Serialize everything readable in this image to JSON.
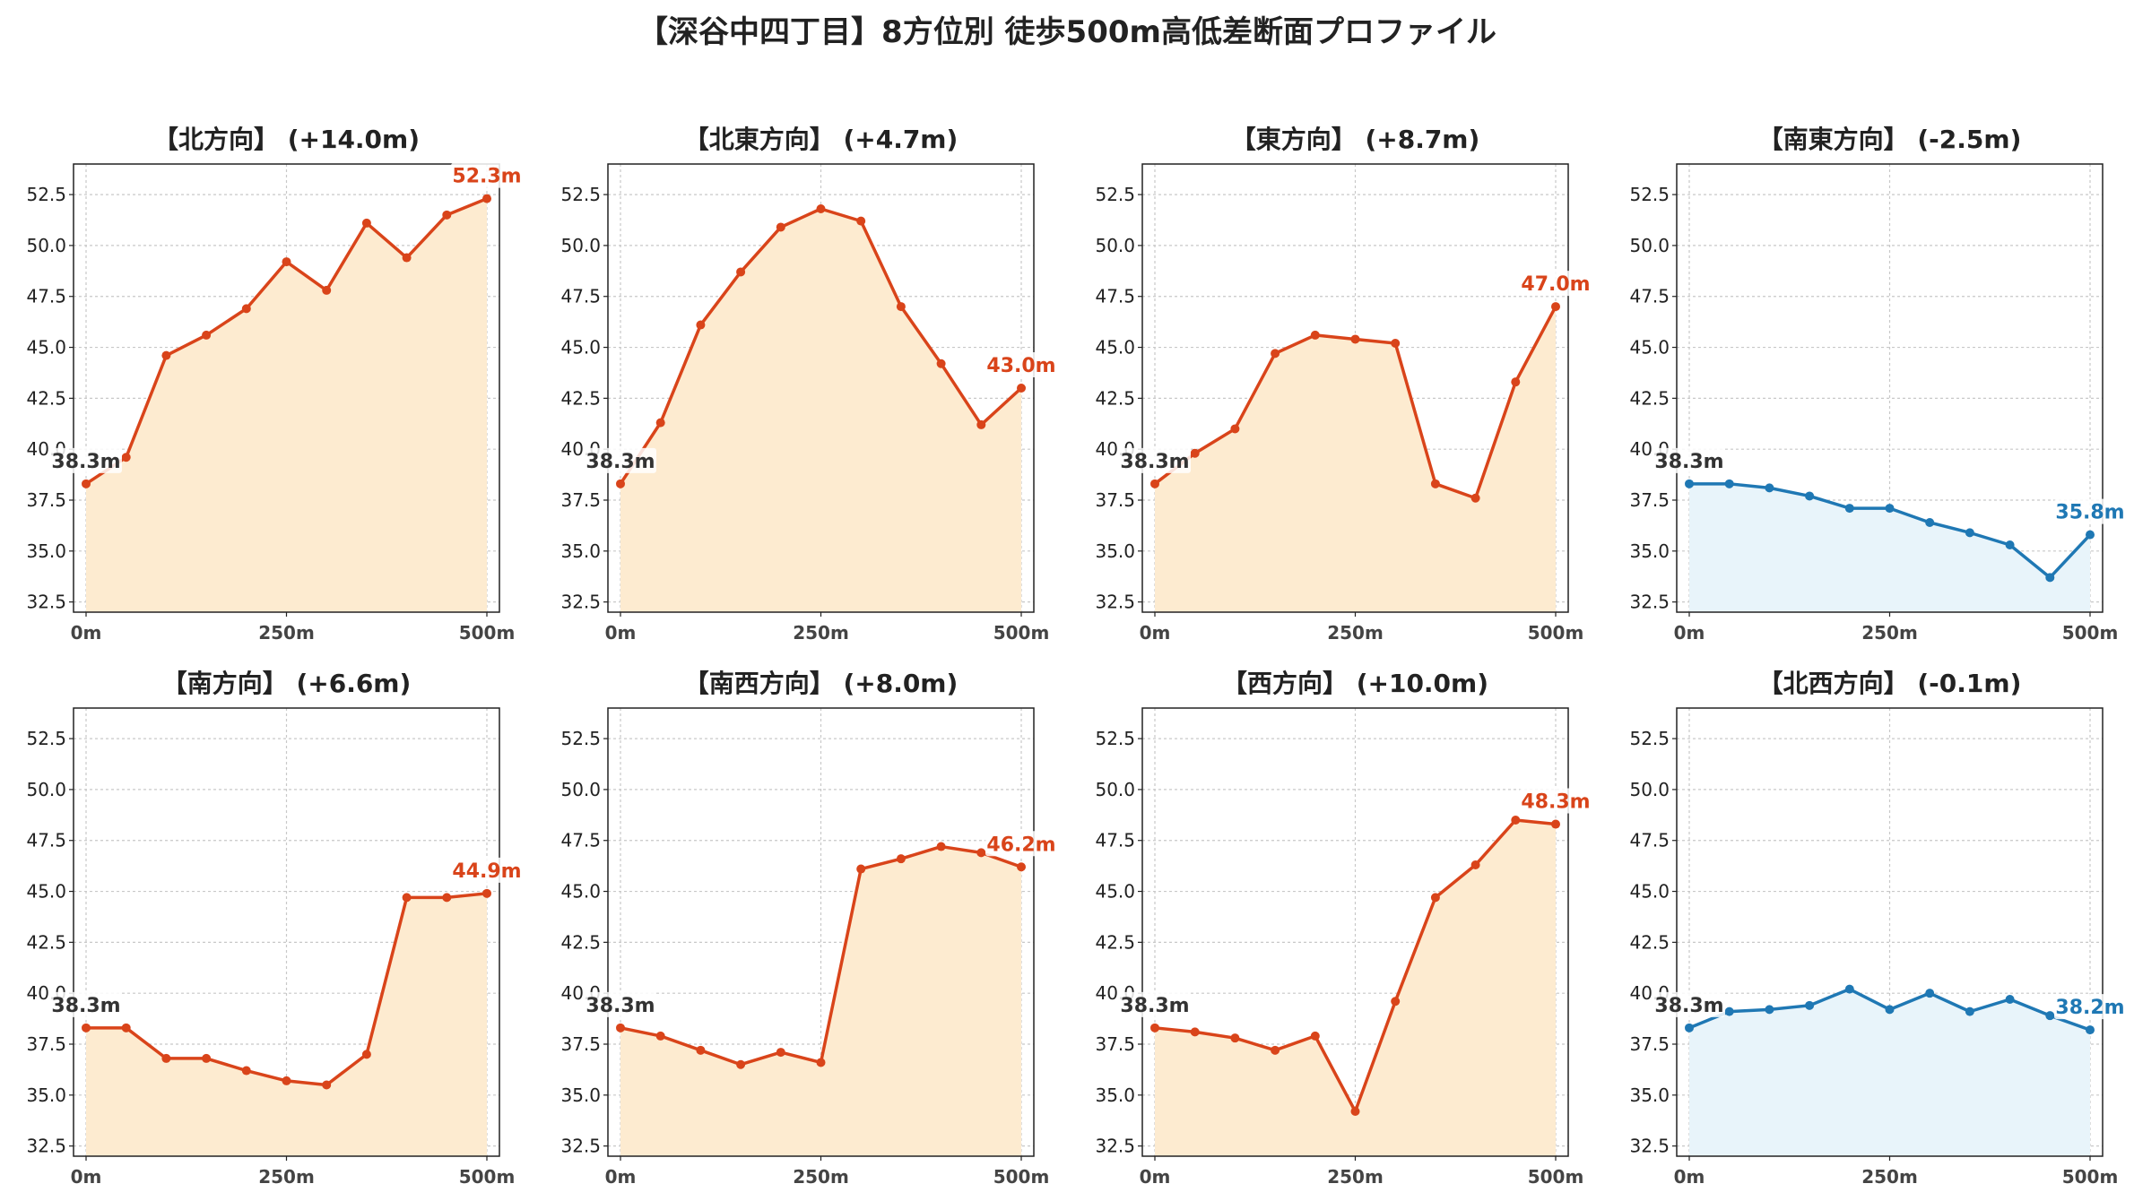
{
  "title": "【深谷中四丁目】8方位別 徒歩500m高低差断面プロファイル",
  "colors": {
    "up": "#d9441a",
    "up_fill": "#fdebd0",
    "down": "#1f78b4",
    "down_fill": "#e8f4fa",
    "start_label": "#333333"
  },
  "chart_data": [
    {
      "type": "area",
      "title": "【北方向】 (+14.0m)",
      "x": [
        0,
        50,
        100,
        150,
        200,
        250,
        300,
        350,
        400,
        450,
        500
      ],
      "values": [
        38.3,
        39.6,
        44.6,
        45.6,
        46.9,
        49.2,
        47.8,
        51.1,
        49.4,
        51.5,
        52.3
      ],
      "start_label": "38.3m",
      "end_label": "52.3m",
      "trend": "up",
      "xticks": [
        "0m",
        "250m",
        "500m"
      ],
      "ylim": [
        32,
        54
      ],
      "yticks": [
        "32.5",
        "35.0",
        "37.5",
        "40.0",
        "42.5",
        "45.0",
        "47.5",
        "50.0",
        "52.5"
      ],
      "grid": true
    },
    {
      "type": "area",
      "title": "【北東方向】 (+4.7m)",
      "x": [
        0,
        50,
        100,
        150,
        200,
        250,
        300,
        350,
        400,
        450,
        500
      ],
      "values": [
        38.3,
        41.3,
        46.1,
        48.7,
        50.9,
        51.8,
        51.2,
        47.0,
        44.2,
        41.2,
        43.0
      ],
      "start_label": "38.3m",
      "end_label": "43.0m",
      "trend": "up",
      "xticks": [
        "0m",
        "250m",
        "500m"
      ],
      "ylim": [
        32,
        54
      ],
      "yticks": [
        "32.5",
        "35.0",
        "37.5",
        "40.0",
        "42.5",
        "45.0",
        "47.5",
        "50.0",
        "52.5"
      ],
      "grid": true
    },
    {
      "type": "area",
      "title": "【東方向】 (+8.7m)",
      "x": [
        0,
        50,
        100,
        150,
        200,
        250,
        300,
        350,
        400,
        450,
        500
      ],
      "values": [
        38.3,
        39.8,
        41.0,
        44.7,
        45.6,
        45.4,
        45.2,
        38.3,
        37.6,
        43.3,
        47.0
      ],
      "start_label": "38.3m",
      "end_label": "47.0m",
      "trend": "up",
      "xticks": [
        "0m",
        "250m",
        "500m"
      ],
      "ylim": [
        32,
        54
      ],
      "yticks": [
        "32.5",
        "35.0",
        "37.5",
        "40.0",
        "42.5",
        "45.0",
        "47.5",
        "50.0",
        "52.5"
      ],
      "grid": true
    },
    {
      "type": "area",
      "title": "【南東方向】 (-2.5m)",
      "x": [
        0,
        50,
        100,
        150,
        200,
        250,
        300,
        350,
        400,
        450,
        500
      ],
      "values": [
        38.3,
        38.3,
        38.1,
        37.7,
        37.1,
        37.1,
        36.4,
        35.9,
        35.3,
        33.7,
        35.8
      ],
      "start_label": "38.3m",
      "end_label": "35.8m",
      "trend": "down",
      "xticks": [
        "0m",
        "250m",
        "500m"
      ],
      "ylim": [
        32,
        54
      ],
      "yticks": [
        "32.5",
        "35.0",
        "37.5",
        "40.0",
        "42.5",
        "45.0",
        "47.5",
        "50.0",
        "52.5"
      ],
      "grid": true
    },
    {
      "type": "area",
      "title": "【南方向】 (+6.6m)",
      "x": [
        0,
        50,
        100,
        150,
        200,
        250,
        300,
        350,
        400,
        450,
        500
      ],
      "values": [
        38.3,
        38.3,
        36.8,
        36.8,
        36.2,
        35.7,
        35.5,
        37.0,
        44.7,
        44.7,
        44.9
      ],
      "start_label": "38.3m",
      "end_label": "44.9m",
      "trend": "up",
      "xticks": [
        "0m",
        "250m",
        "500m"
      ],
      "ylim": [
        32,
        54
      ],
      "yticks": [
        "32.5",
        "35.0",
        "37.5",
        "40.0",
        "42.5",
        "45.0",
        "47.5",
        "50.0",
        "52.5"
      ],
      "grid": true
    },
    {
      "type": "area",
      "title": "【南西方向】 (+8.0m)",
      "x": [
        0,
        50,
        100,
        150,
        200,
        250,
        300,
        350,
        400,
        450,
        500
      ],
      "values": [
        38.3,
        37.9,
        37.2,
        36.5,
        37.1,
        36.6,
        46.1,
        46.6,
        47.2,
        46.9,
        46.2
      ],
      "start_label": "38.3m",
      "end_label": "46.2m",
      "trend": "up",
      "xticks": [
        "0m",
        "250m",
        "500m"
      ],
      "ylim": [
        32,
        54
      ],
      "yticks": [
        "32.5",
        "35.0",
        "37.5",
        "40.0",
        "42.5",
        "45.0",
        "47.5",
        "50.0",
        "52.5"
      ],
      "grid": true
    },
    {
      "type": "area",
      "title": "【西方向】 (+10.0m)",
      "x": [
        0,
        50,
        100,
        150,
        200,
        250,
        300,
        350,
        400,
        450,
        500
      ],
      "values": [
        38.3,
        38.1,
        37.8,
        37.2,
        37.9,
        34.2,
        39.6,
        44.7,
        46.3,
        48.5,
        48.3
      ],
      "start_label": "38.3m",
      "end_label": "48.3m",
      "trend": "up",
      "xticks": [
        "0m",
        "250m",
        "500m"
      ],
      "ylim": [
        32,
        54
      ],
      "yticks": [
        "32.5",
        "35.0",
        "37.5",
        "40.0",
        "42.5",
        "45.0",
        "47.5",
        "50.0",
        "52.5"
      ],
      "grid": true
    },
    {
      "type": "area",
      "title": "【北西方向】 (-0.1m)",
      "x": [
        0,
        50,
        100,
        150,
        200,
        250,
        300,
        350,
        400,
        450,
        500
      ],
      "values": [
        38.3,
        39.1,
        39.2,
        39.4,
        40.2,
        39.2,
        40.0,
        39.1,
        39.7,
        38.9,
        38.2
      ],
      "start_label": "38.3m",
      "end_label": "38.2m",
      "trend": "down",
      "xticks": [
        "0m",
        "250m",
        "500m"
      ],
      "ylim": [
        32,
        54
      ],
      "yticks": [
        "32.5",
        "35.0",
        "37.5",
        "40.0",
        "42.5",
        "45.0",
        "47.5",
        "50.0",
        "52.5"
      ],
      "grid": true
    }
  ]
}
